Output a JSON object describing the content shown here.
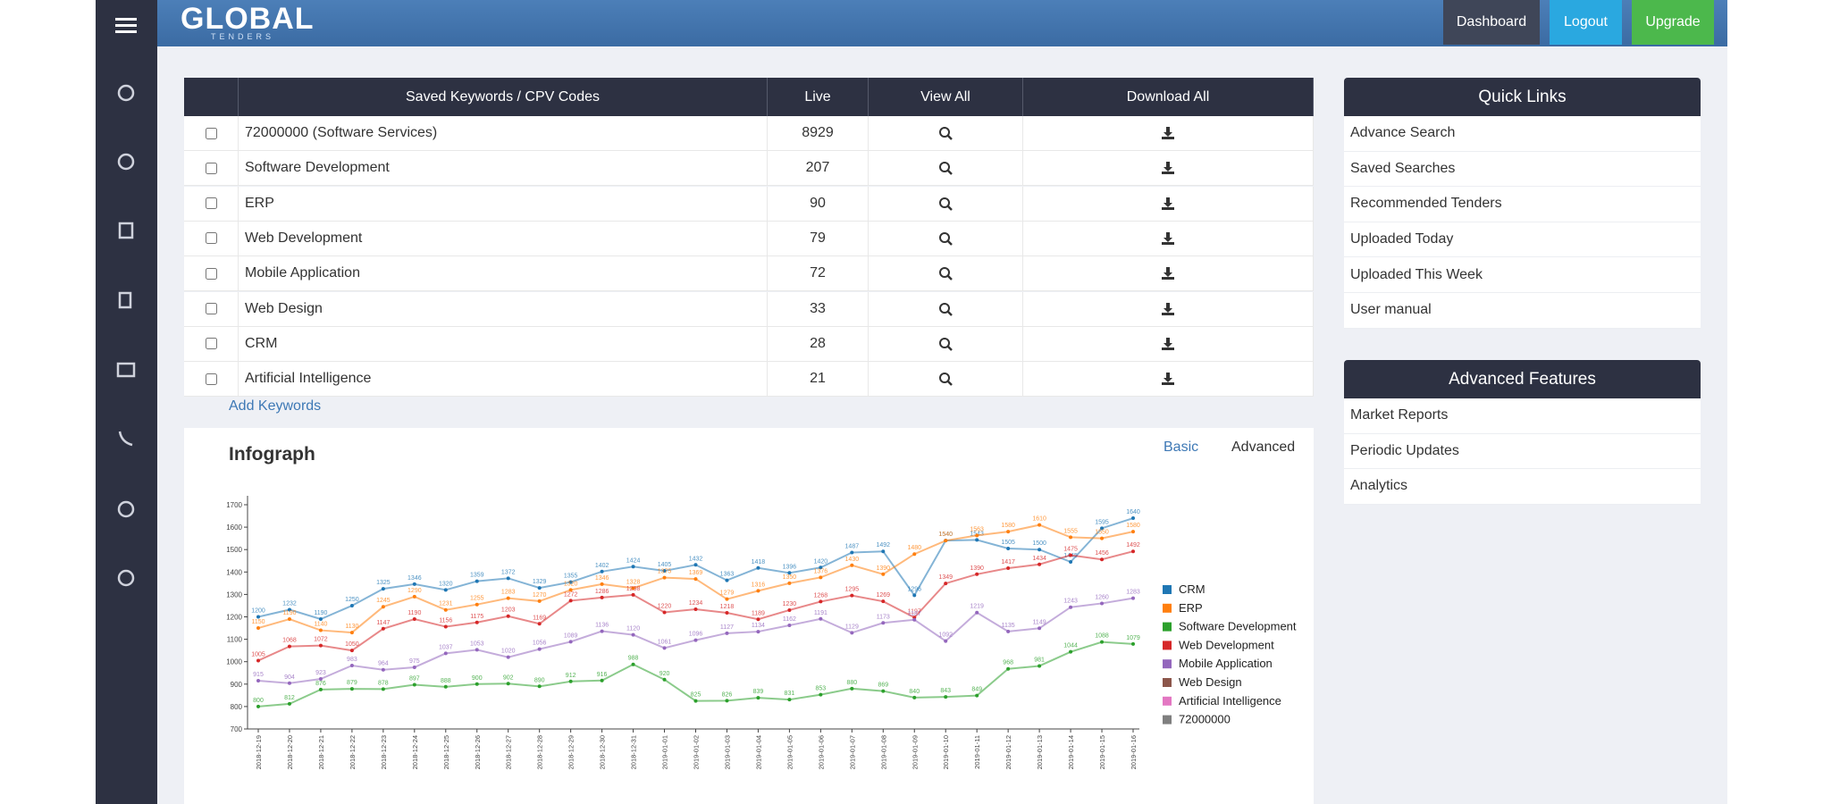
{
  "header": {
    "logo": "GLOBAL",
    "logo_sub": "TENDERS",
    "buttons": [
      "Dashboard",
      "Logout",
      "Upgrade"
    ]
  },
  "table": {
    "columns": [
      "Saved Keywords / CPV Codes",
      "Live",
      "View All",
      "Download All"
    ],
    "rows": [
      [
        "72000000 (Software Services)",
        8929
      ],
      [
        "Software Development",
        207
      ],
      [
        "ERP",
        90
      ],
      [
        "Web Development",
        79
      ],
      [
        "Mobile Application",
        72
      ],
      [
        "Web Design",
        33
      ],
      [
        "CRM",
        28
      ],
      [
        "Artificial Intelligence",
        21
      ]
    ]
  },
  "add_keywords": "Add Keywords",
  "quick_links": {
    "title": "Quick Links",
    "items": [
      "Advance Search",
      "Saved Searches",
      "Recommended Tenders",
      "Uploaded Today",
      "Uploaded This Week",
      "User manual"
    ]
  },
  "advanced_features": {
    "title": "Advanced Features",
    "items": [
      "Market Reports",
      "Periodic Updates",
      "Analytics"
    ]
  },
  "infograph": {
    "title": "Infograph",
    "tabs": [
      "Basic",
      "Advanced"
    ]
  },
  "chart_data": {
    "type": "line",
    "x": [
      "2018-12-19",
      "2018-12-20",
      "2018-12-21",
      "2018-12-22",
      "2018-12-23",
      "2018-12-24",
      "2018-12-25",
      "2018-12-26",
      "2018-12-27",
      "2018-12-28",
      "2018-12-29",
      "2018-12-30",
      "2018-12-31",
      "2019-01-01",
      "2019-01-02",
      "2019-01-03",
      "2019-01-04",
      "2019-01-05",
      "2019-01-06",
      "2019-01-07",
      "2019-01-08",
      "2019-01-09",
      "2019-01-10",
      "2019-01-11",
      "2019-01-12",
      "2019-01-13",
      "2019-01-14",
      "2019-01-15",
      "2019-01-16"
    ],
    "series": [
      {
        "name": "CRM",
        "color": "#1f77b4",
        "values": [
          1200,
          1232,
          1190,
          1250,
          1325,
          1346,
          1320,
          1359,
          1372,
          1329,
          1355,
          1402,
          1424,
          1405,
          1432,
          1363,
          1418,
          1396,
          1420,
          1487,
          1492,
          1296,
          1540,
          1543,
          1505,
          1500,
          1445,
          1595,
          1640
        ]
      },
      {
        "name": "ERP",
        "color": "#ff7f0e",
        "values": [
          1150,
          1190,
          1140,
          1130,
          1245,
          1290,
          1231,
          1255,
          1283,
          1270,
          1320,
          1346,
          1328,
          1375,
          1369,
          1279,
          1316,
          1350,
          1376,
          1430,
          1390,
          1480,
          1540,
          1563,
          1580,
          1610,
          1555,
          1550,
          1580
        ]
      },
      {
        "name": "Software Development",
        "color": "#2ca02c",
        "values": [
          800,
          812,
          876,
          879,
          878,
          897,
          888,
          900,
          902,
          890,
          912,
          916,
          988,
          920,
          825,
          826,
          839,
          831,
          853,
          880,
          869,
          840,
          843,
          849,
          968,
          981,
          1044,
          1088,
          1079
        ]
      },
      {
        "name": "Web Development",
        "color": "#d62728",
        "values": [
          1005,
          1068,
          1072,
          1050,
          1147,
          1190,
          1156,
          1175,
          1203,
          1169,
          1272,
          1286,
          1298,
          1220,
          1234,
          1218,
          1189,
          1230,
          1268,
          1295,
          1269,
          1197,
          1349,
          1390,
          1417,
          1434,
          1475,
          1456,
          1492
        ]
      },
      {
        "name": "Mobile Application",
        "color": "#9467bd",
        "values": [
          915,
          904,
          923,
          983,
          964,
          975,
          1037,
          1053,
          1020,
          1056,
          1089,
          1136,
          1120,
          1061,
          1096,
          1127,
          1134,
          1162,
          1191,
          1129,
          1173,
          1187,
          1092,
          1219,
          1135,
          1149,
          1243,
          1260,
          1283
        ]
      },
      {
        "name": "Web Design",
        "color": "#8c564b"
      },
      {
        "name": "Artificial Intelligence",
        "color": "#e377c2"
      },
      {
        "name": "72000000",
        "color": "#7f7f7f"
      }
    ],
    "ylim": [
      700,
      1700
    ],
    "yticks": [
      700,
      800,
      900,
      1000,
      1100,
      1200,
      1300,
      1400,
      1500,
      1600,
      1700
    ]
  }
}
